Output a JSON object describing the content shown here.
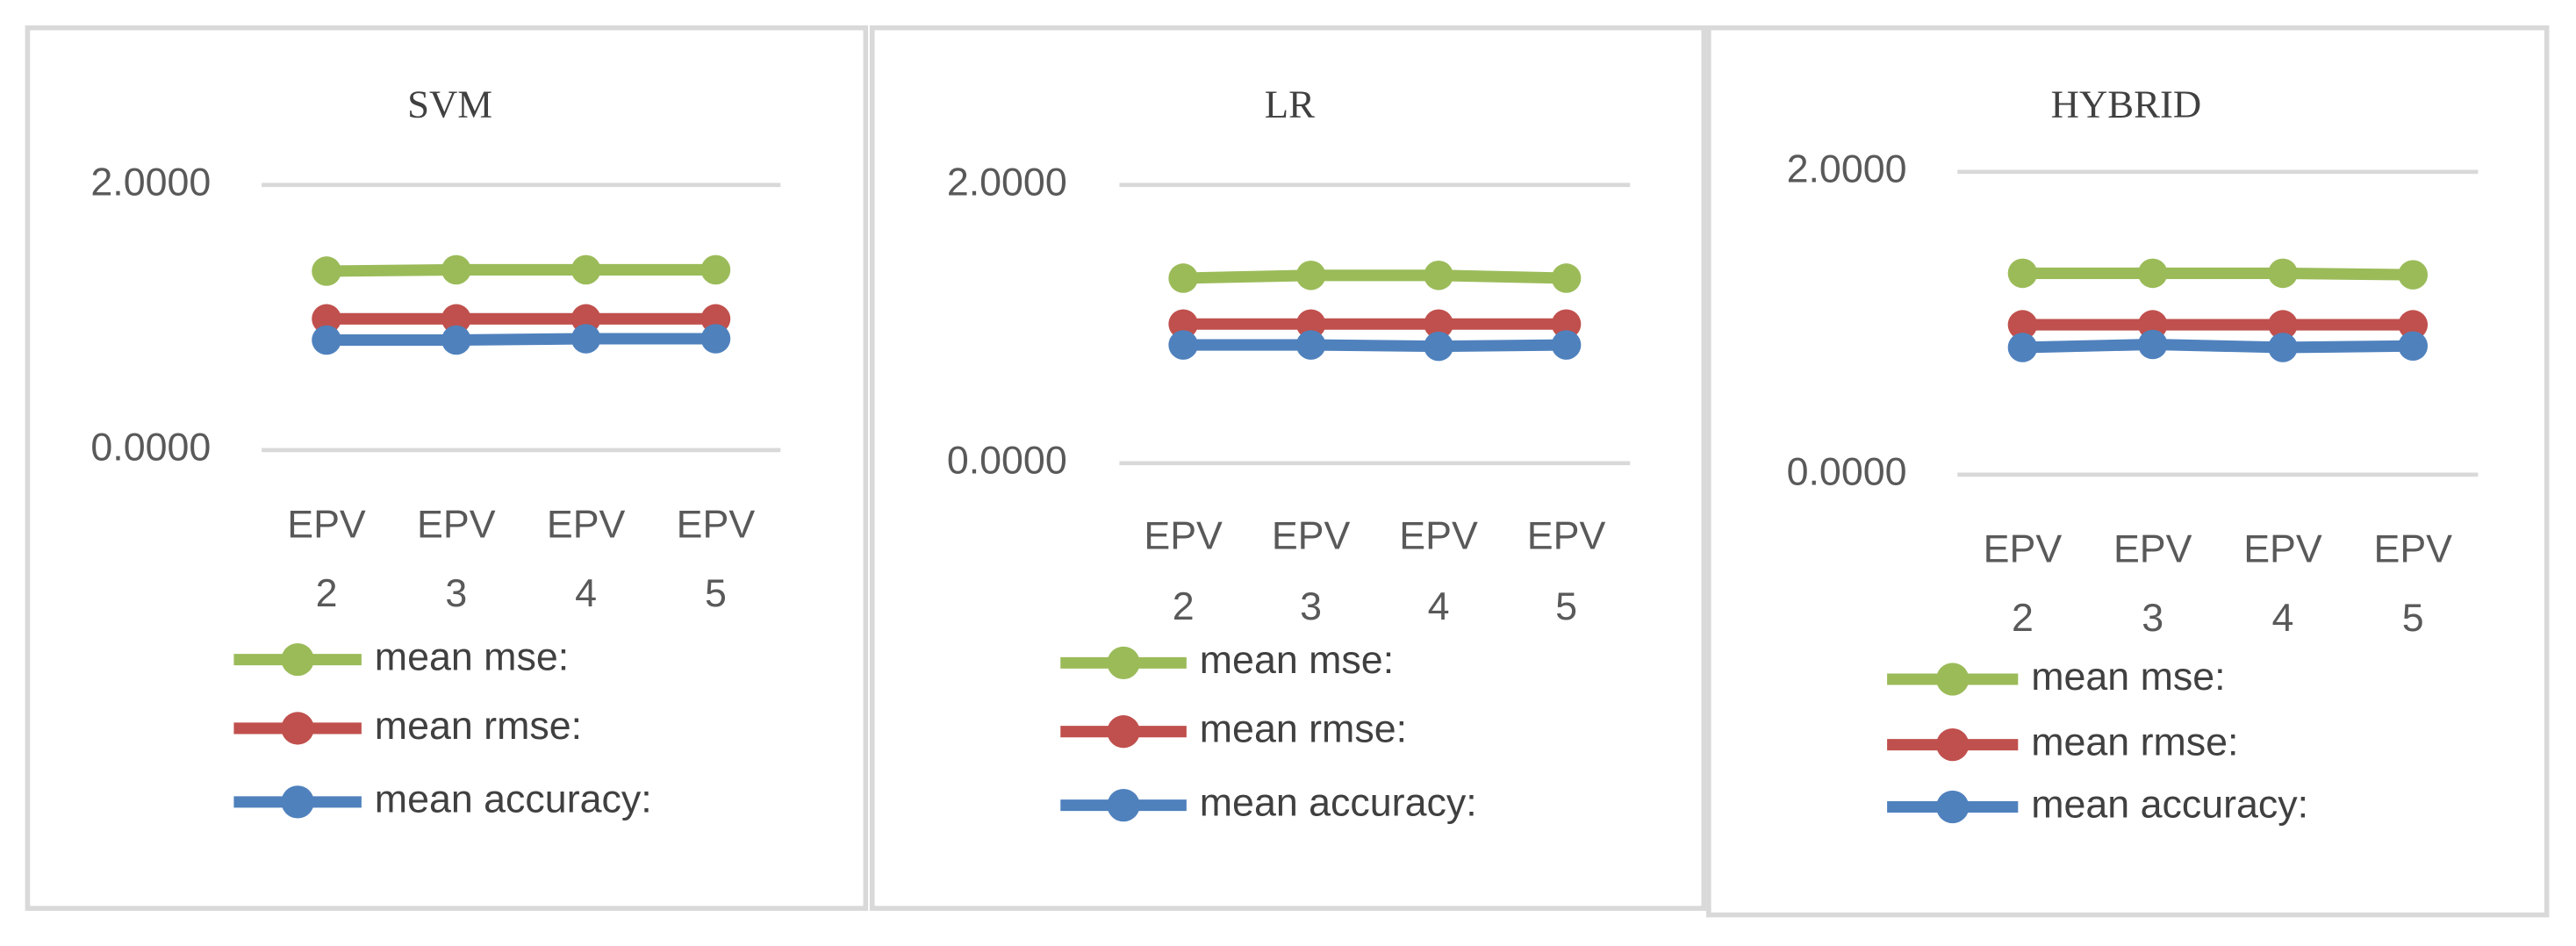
{
  "chart_data": [
    {
      "type": "line",
      "title": "SVM",
      "categories": [
        "EPV 2",
        "EPV 3",
        "EPV 4",
        "EPV 5"
      ],
      "series": [
        {
          "name": "mean mse:",
          "color": "#9bbb59",
          "values": [
            1.35,
            1.36,
            1.36,
            1.36
          ]
        },
        {
          "name": "mean rmse:",
          "color": "#c0504d",
          "values": [
            0.99,
            0.99,
            0.99,
            0.99
          ]
        },
        {
          "name": "mean accuracy:",
          "color": "#4f81bd",
          "values": [
            0.83,
            0.83,
            0.84,
            0.84
          ]
        }
      ],
      "ylim": [
        0,
        2
      ],
      "yticks": [
        {
          "value": 0,
          "label": "0.0000"
        },
        {
          "value": 2,
          "label": "2.0000"
        }
      ],
      "grid": true
    },
    {
      "type": "line",
      "title": "LR",
      "categories": [
        "EPV 2",
        "EPV 3",
        "EPV 4",
        "EPV 5"
      ],
      "series": [
        {
          "name": "mean mse:",
          "color": "#9bbb59",
          "values": [
            1.33,
            1.35,
            1.35,
            1.33
          ]
        },
        {
          "name": "mean rmse:",
          "color": "#c0504d",
          "values": [
            1.0,
            1.0,
            1.0,
            1.0
          ]
        },
        {
          "name": "mean accuracy:",
          "color": "#4f81bd",
          "values": [
            0.85,
            0.85,
            0.84,
            0.85
          ]
        }
      ],
      "ylim": [
        0,
        2
      ],
      "yticks": [
        {
          "value": 0,
          "label": "0.0000"
        },
        {
          "value": 2,
          "label": "2.0000"
        }
      ],
      "grid": true
    },
    {
      "type": "line",
      "title": "HYBRID",
      "categories": [
        "EPV 2",
        "EPV 3",
        "EPV 4",
        "EPV 5"
      ],
      "series": [
        {
          "name": "mean mse:",
          "color": "#9bbb59",
          "values": [
            1.33,
            1.33,
            1.33,
            1.32
          ]
        },
        {
          "name": "mean rmse:",
          "color": "#c0504d",
          "values": [
            0.99,
            0.99,
            0.99,
            0.99
          ]
        },
        {
          "name": "mean accuracy:",
          "color": "#4f81bd",
          "values": [
            0.84,
            0.86,
            0.84,
            0.85
          ]
        }
      ],
      "ylim": [
        0,
        2
      ],
      "yticks": [
        {
          "value": 0,
          "label": "0.0000"
        },
        {
          "value": 2,
          "label": "2.0000"
        }
      ],
      "grid": true
    }
  ]
}
